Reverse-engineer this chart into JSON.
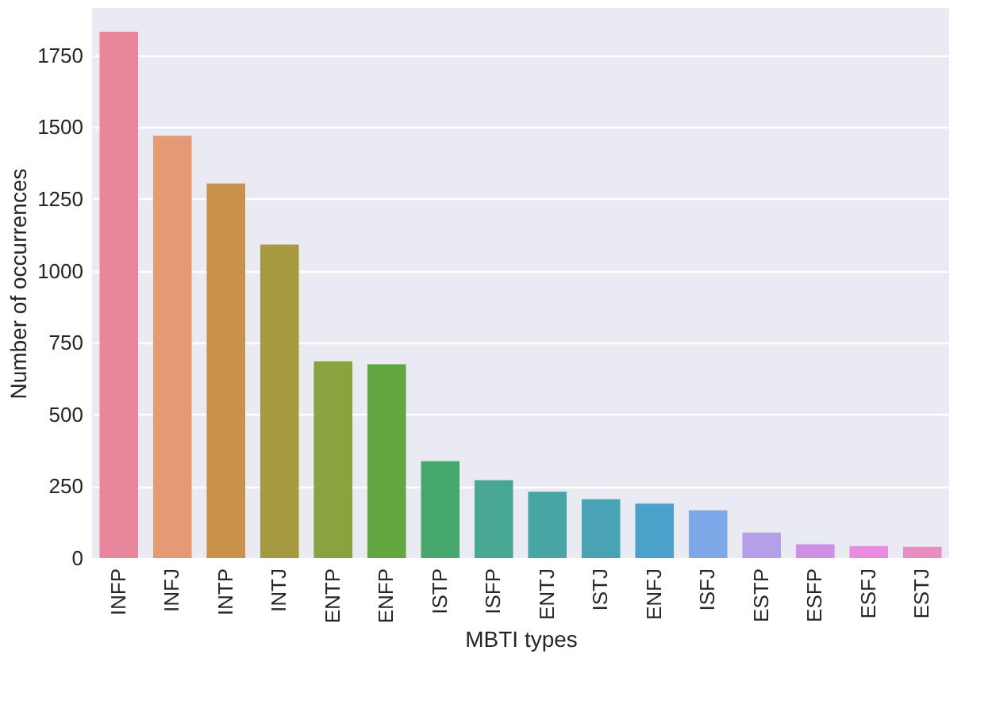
{
  "chart_data": {
    "type": "bar",
    "xlabel": "MBTI types",
    "ylabel": "Number of occurrences",
    "categories": [
      "INFP",
      "INFJ",
      "INTP",
      "INTJ",
      "ENTP",
      "ENFP",
      "ISTP",
      "ISFP",
      "ENTJ",
      "ISTJ",
      "ENFJ",
      "ISFJ",
      "ESTP",
      "ESFP",
      "ESFJ",
      "ESTJ"
    ],
    "values": [
      1832,
      1470,
      1304,
      1091,
      685,
      675,
      337,
      271,
      231,
      205,
      190,
      166,
      89,
      48,
      42,
      39
    ],
    "colors": [
      "#e8879b",
      "#e59a74",
      "#c9924b",
      "#a59a3f",
      "#8aa33f",
      "#62a63f",
      "#47a86c",
      "#48a792",
      "#47a5a4",
      "#49a3b4",
      "#4aa1c9",
      "#7ea7e8",
      "#b3a0e8",
      "#d08fe6",
      "#e68be0",
      "#e78fc0"
    ],
    "ylim": [
      0,
      1915
    ],
    "yticks": [
      0,
      250,
      500,
      750,
      1000,
      1250,
      1500,
      1750
    ],
    "grid": "y"
  }
}
